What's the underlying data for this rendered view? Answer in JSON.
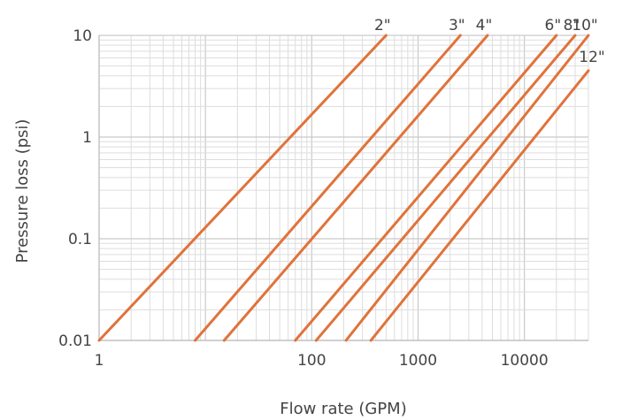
{
  "chart_data": {
    "type": "line",
    "xlabel": "Flow rate (GPM)",
    "ylabel": "Pressure loss (psi)",
    "xscale": "log",
    "yscale": "log",
    "xlim": [
      1,
      40000
    ],
    "ylim": [
      0.01,
      10
    ],
    "grid": true,
    "x_ticks": [
      1,
      100,
      1000,
      10000
    ],
    "x_tick_labels": [
      "1",
      "100",
      "1000",
      "10000"
    ],
    "y_ticks": [
      0.01,
      0.1,
      1,
      10
    ],
    "y_tick_labels": [
      "0.01",
      "0.1",
      "1",
      "10"
    ],
    "line_color": "#e0733a",
    "series": [
      {
        "name": "2\"",
        "points": [
          [
            1,
            0.01
          ],
          [
            500,
            10
          ]
        ]
      },
      {
        "name": "3\"",
        "points": [
          [
            8,
            0.01
          ],
          [
            2500,
            10
          ]
        ]
      },
      {
        "name": "4\"",
        "points": [
          [
            15,
            0.01
          ],
          [
            4500,
            10
          ]
        ]
      },
      {
        "name": "6\"",
        "points": [
          [
            70,
            0.01
          ],
          [
            20000,
            10
          ]
        ]
      },
      {
        "name": "8\"",
        "points": [
          [
            110,
            0.01
          ],
          [
            30000,
            10
          ]
        ]
      },
      {
        "name": "10\"",
        "points": [
          [
            210,
            0.01
          ],
          [
            40000,
            10
          ]
        ]
      },
      {
        "name": "12\"",
        "points": [
          [
            360,
            0.01
          ],
          [
            40000,
            4.5
          ]
        ]
      }
    ]
  }
}
